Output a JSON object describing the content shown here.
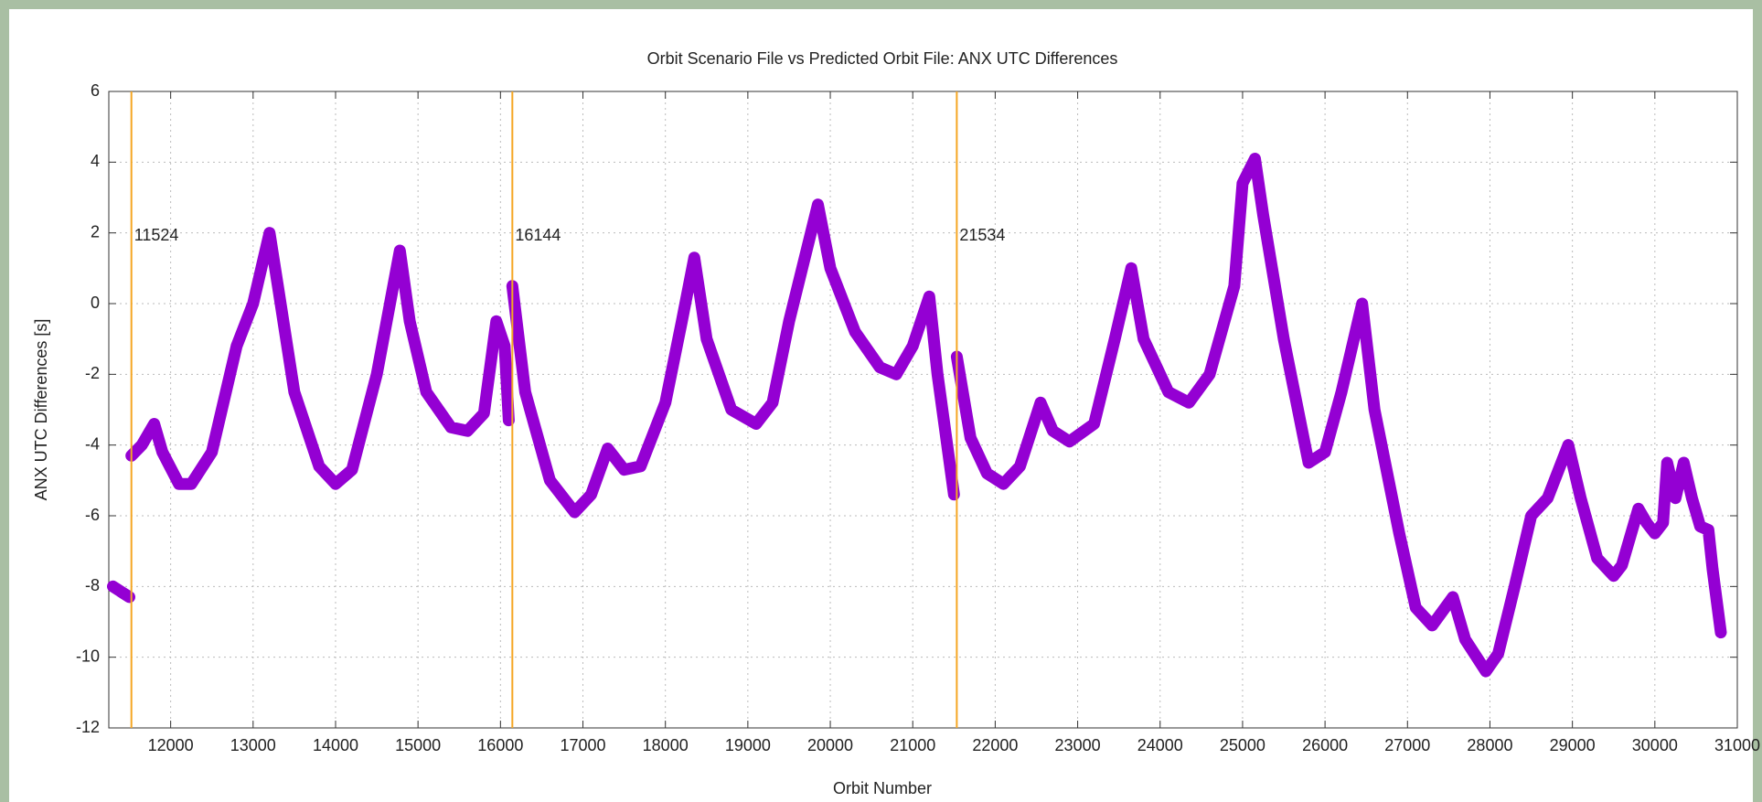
{
  "chart_data": {
    "type": "line",
    "title": "Orbit Scenario File vs Predicted Orbit File: ANX UTC Differences",
    "x_label": "Orbit Number",
    "y_label": "ANX UTC Differences [s]",
    "xlim": [
      11250,
      31000
    ],
    "ylim": [
      -12,
      6
    ],
    "xticks": [
      12000,
      13000,
      14000,
      15000,
      16000,
      17000,
      18000,
      19000,
      20000,
      21000,
      22000,
      23000,
      24000,
      25000,
      26000,
      27000,
      28000,
      29000,
      30000,
      31000
    ],
    "yticks": [
      -12,
      -10,
      -8,
      -6,
      -4,
      -2,
      0,
      2,
      4,
      6
    ],
    "grid": true,
    "vlines": [
      11524,
      16144,
      21534
    ],
    "vline_color": "#f5a623",
    "x": [
      11300,
      11400,
      11500,
      11512,
      11524,
      11650,
      11800,
      11900,
      12100,
      12250,
      12500,
      12800,
      13000,
      13200,
      13300,
      13500,
      13800,
      14000,
      14200,
      14500,
      14780,
      14900,
      15100,
      15400,
      15600,
      15800,
      15950,
      16050,
      16100,
      16122,
      16144,
      16300,
      16600,
      16900,
      17100,
      17300,
      17500,
      17700,
      18000,
      18200,
      18350,
      18500,
      18800,
      19100,
      19300,
      19500,
      19850,
      20000,
      20300,
      20600,
      20800,
      21000,
      21200,
      21300,
      21500,
      21517,
      21534,
      21700,
      21900,
      22100,
      22300,
      22550,
      22700,
      22900,
      23200,
      23450,
      23650,
      23800,
      24100,
      24350,
      24600,
      24900,
      25000,
      25150,
      25250,
      25500,
      25800,
      26000,
      26200,
      26450,
      26600,
      26900,
      27100,
      27300,
      27550,
      27700,
      27950,
      28100,
      28300,
      28500,
      28700,
      28950,
      29100,
      29300,
      29500,
      29600,
      29800,
      29900,
      30000,
      30100,
      30150,
      30250,
      30350,
      30450,
      30550,
      30650,
      30700,
      30800
    ],
    "series": [
      {
        "name": "ANX UTC Differences",
        "color": "#9400d3",
        "values": [
          -8.0,
          -8.15,
          -8.3,
          null,
          -4.3,
          -4.0,
          -3.4,
          -4.2,
          -5.1,
          -5.1,
          -4.2,
          -1.2,
          0,
          2.0,
          0.5,
          -2.5,
          -4.6,
          -5.1,
          -4.7,
          -2.0,
          1.5,
          -0.5,
          -2.5,
          -3.5,
          -3.6,
          -3.1,
          -0.5,
          -1.2,
          -3.3,
          null,
          0.5,
          -2.5,
          -5.0,
          -5.9,
          -5.4,
          -4.1,
          -4.7,
          -4.6,
          -2.8,
          -0.5,
          1.3,
          -1.0,
          -3.0,
          -3.4,
          -2.8,
          -0.5,
          2.8,
          1.0,
          -0.8,
          -1.8,
          -2.0,
          -1.2,
          0.2,
          -2.0,
          -5.4,
          null,
          -1.5,
          -3.8,
          -4.8,
          -5.1,
          -4.6,
          -2.8,
          -3.6,
          -3.9,
          -3.4,
          -1.0,
          1.0,
          -1.0,
          -2.5,
          -2.8,
          -2.0,
          0.5,
          3.4,
          4.1,
          2.5,
          -1.0,
          -4.5,
          -4.2,
          -2.5,
          0.0,
          -3.0,
          -6.5,
          -8.6,
          -9.1,
          -8.3,
          -9.5,
          -10.4,
          -9.9,
          -8.0,
          -6.0,
          -5.5,
          -4.0,
          -5.5,
          -7.2,
          -7.7,
          -7.4,
          -5.8,
          -6.2,
          -6.5,
          -6.2,
          -4.5,
          -5.5,
          -4.5,
          -5.5,
          -6.3,
          -6.4,
          -7.5,
          -9.3
        ]
      }
    ]
  }
}
